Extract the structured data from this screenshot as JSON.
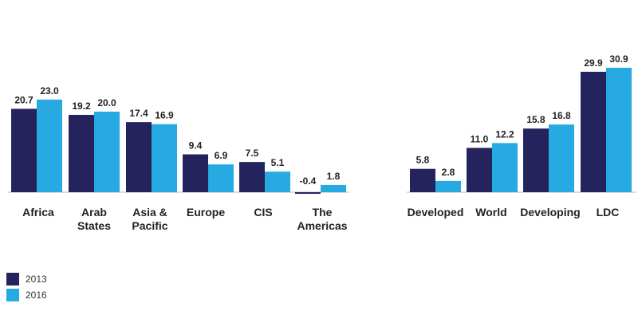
{
  "chart_data": {
    "type": "bar",
    "categories": [
      "Africa",
      "Arab States",
      "Asia & Pacific",
      "Europe",
      "CIS",
      "The Americas",
      "Developed",
      "World",
      "Developing",
      "LDC"
    ],
    "category_lines": [
      [
        "Africa"
      ],
      [
        "Arab",
        "States"
      ],
      [
        "Asia &",
        "Pacific"
      ],
      [
        "Europe"
      ],
      [
        "CIS"
      ],
      [
        "The",
        "Americas"
      ],
      [
        "Developed"
      ],
      [
        "World"
      ],
      [
        "Developing"
      ],
      [
        "LDC"
      ]
    ],
    "series": [
      {
        "name": "2013",
        "color": "#25235e",
        "values": [
          20.7,
          19.2,
          17.4,
          9.4,
          7.5,
          -0.4,
          5.8,
          11.0,
          15.8,
          29.9
        ],
        "labels": [
          "20.7",
          "19.2",
          "17.4",
          "9.4",
          "7.5",
          "-0.4",
          "5.8",
          "11.0",
          "15.8",
          "29.9"
        ]
      },
      {
        "name": "2016",
        "color": "#27a9e1",
        "values": [
          23.0,
          20.0,
          16.9,
          6.9,
          5.1,
          1.8,
          2.8,
          12.2,
          16.8,
          30.9
        ],
        "labels": [
          "23.0",
          "20.0",
          "16.9",
          "6.9",
          "5.1",
          "1.8",
          "2.8",
          "12.2",
          "16.8",
          "30.9"
        ]
      }
    ],
    "ylim": [
      -0.4,
      30.9
    ],
    "grid": false,
    "legend_position": "bottom-left",
    "title": "",
    "xlabel": "",
    "ylabel": ""
  }
}
